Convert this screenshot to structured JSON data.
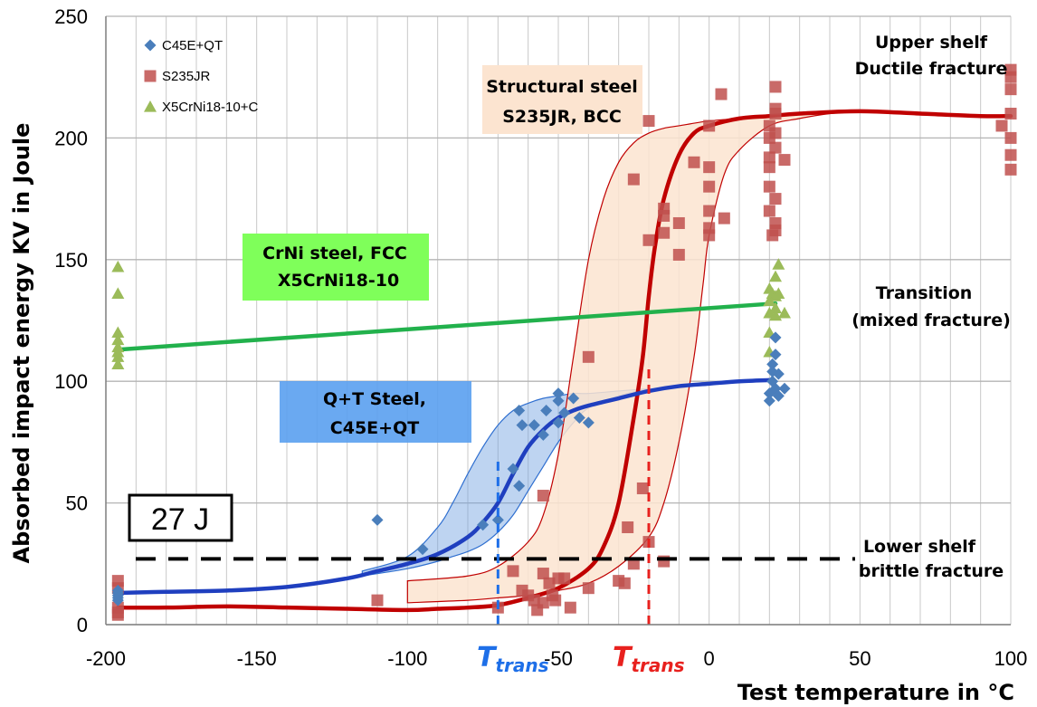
{
  "chart_data": {
    "type": "scatter",
    "xlabel": "Test temperature in °C",
    "ylabel": "Absorbed impact energy KV in Joule",
    "xlim": [
      -200,
      100
    ],
    "ylim": [
      0,
      250
    ],
    "xticks": [
      -200,
      -150,
      -100,
      -50,
      0,
      50,
      100
    ],
    "yticks": [
      0,
      50,
      100,
      150,
      200,
      250
    ],
    "grid": "vertical minor every 10 °C, horizontal every 50 J",
    "legend_position": "top-left",
    "series": [
      {
        "name": "C45E+QT",
        "marker": "diamond",
        "color": "#4a7ebb",
        "points": [
          [
            -196,
            14
          ],
          [
            -196,
            13
          ],
          [
            -196,
            12
          ],
          [
            -196,
            11
          ],
          [
            -196,
            10
          ],
          [
            -110,
            43
          ],
          [
            -95,
            31
          ],
          [
            -75,
            41
          ],
          [
            -70,
            43
          ],
          [
            -65,
            64
          ],
          [
            -63,
            57
          ],
          [
            -63,
            88
          ],
          [
            -62,
            82
          ],
          [
            -58,
            82
          ],
          [
            -55,
            78
          ],
          [
            -54,
            88
          ],
          [
            -50,
            92
          ],
          [
            -50,
            83
          ],
          [
            -50,
            95
          ],
          [
            -48,
            87
          ],
          [
            -45,
            93
          ],
          [
            -43,
            85
          ],
          [
            -40,
            83
          ],
          [
            20,
            92
          ],
          [
            20,
            95
          ],
          [
            21,
            100
          ],
          [
            21,
            104
          ],
          [
            21,
            107
          ],
          [
            22,
            111
          ],
          [
            22,
            118
          ],
          [
            22,
            97
          ],
          [
            23,
            94
          ],
          [
            23,
            103
          ],
          [
            25,
            97
          ]
        ]
      },
      {
        "name": "S235JR",
        "marker": "square",
        "color": "#c0504d",
        "points": [
          [
            -196,
            18
          ],
          [
            -196,
            15
          ],
          [
            -196,
            7
          ],
          [
            -196,
            5
          ],
          [
            -196,
            4
          ],
          [
            -110,
            10
          ],
          [
            -70,
            7
          ],
          [
            -65,
            22
          ],
          [
            -62,
            14
          ],
          [
            -60,
            12
          ],
          [
            -58,
            10
          ],
          [
            -57,
            6
          ],
          [
            -55,
            9
          ],
          [
            -55,
            53
          ],
          [
            -55,
            21
          ],
          [
            -53,
            17
          ],
          [
            -52,
            12
          ],
          [
            -51,
            10
          ],
          [
            -50,
            19
          ],
          [
            -48,
            19
          ],
          [
            -46,
            7
          ],
          [
            -40,
            15
          ],
          [
            -40,
            110
          ],
          [
            -30,
            18
          ],
          [
            -28,
            17
          ],
          [
            -27,
            40
          ],
          [
            -25,
            25
          ],
          [
            -25,
            183
          ],
          [
            -22,
            56
          ],
          [
            -20,
            207
          ],
          [
            -20,
            158
          ],
          [
            -20,
            34
          ],
          [
            -15,
            161
          ],
          [
            -15,
            168
          ],
          [
            -15,
            171
          ],
          [
            -15,
            26
          ],
          [
            -10,
            165
          ],
          [
            -10,
            152
          ],
          [
            -5,
            190
          ],
          [
            0,
            205
          ],
          [
            0,
            188
          ],
          [
            0,
            180
          ],
          [
            0,
            170
          ],
          [
            0,
            163
          ],
          [
            0,
            160
          ],
          [
            4,
            218
          ],
          [
            5,
            167
          ],
          [
            20,
            205
          ],
          [
            20,
            200
          ],
          [
            20,
            192
          ],
          [
            20,
            188
          ],
          [
            20,
            180
          ],
          [
            20,
            170
          ],
          [
            21,
            160
          ],
          [
            22,
            221
          ],
          [
            22,
            212
          ],
          [
            22,
            210
          ],
          [
            22,
            202
          ],
          [
            22,
            196
          ],
          [
            22,
            175
          ],
          [
            22,
            165
          ],
          [
            22,
            162
          ],
          [
            25,
            191
          ],
          [
            97,
            205
          ],
          [
            100,
            228
          ],
          [
            100,
            225
          ],
          [
            100,
            220
          ],
          [
            100,
            210
          ],
          [
            100,
            200
          ],
          [
            100,
            193
          ],
          [
            100,
            187
          ]
        ]
      },
      {
        "name": "X5CrNi18-10+C",
        "marker": "triangle",
        "color": "#9bbb59",
        "points": [
          [
            -196,
            147
          ],
          [
            -196,
            136
          ],
          [
            -196,
            120
          ],
          [
            -196,
            117
          ],
          [
            -196,
            114
          ],
          [
            -196,
            112
          ],
          [
            -196,
            110
          ],
          [
            -196,
            107
          ],
          [
            20,
            112
          ],
          [
            20,
            120
          ],
          [
            20,
            128
          ],
          [
            20,
            133
          ],
          [
            20,
            138
          ],
          [
            21,
            136
          ],
          [
            22,
            130
          ],
          [
            22,
            127
          ],
          [
            22,
            135
          ],
          [
            22,
            143
          ],
          [
            23,
            148
          ],
          [
            23,
            136
          ],
          [
            25,
            128
          ]
        ]
      }
    ],
    "fits": [
      {
        "series": "S235JR",
        "color": "#c00000",
        "x": [
          -196,
          -180,
          -160,
          -140,
          -120,
          -100,
          -90,
          -80,
          -70,
          -60,
          -50,
          -40,
          -35,
          -30,
          -25,
          -22,
          -20,
          -18,
          -15,
          -10,
          -5,
          0,
          10,
          20,
          30,
          50,
          70,
          90,
          100
        ],
        "y": [
          7,
          7,
          7.5,
          7,
          6.5,
          6,
          6.5,
          7,
          8,
          11,
          15,
          23,
          32,
          50,
          85,
          110,
          135,
          155,
          175,
          193,
          202,
          205,
          208,
          209,
          210,
          211,
          210,
          209,
          209
        ]
      },
      {
        "series": "C45E+QT",
        "color": "#1f3fbf",
        "x": [
          -196,
          -180,
          -160,
          -140,
          -120,
          -110,
          -100,
          -90,
          -80,
          -75,
          -70,
          -65,
          -60,
          -55,
          -50,
          -45,
          -40,
          -30,
          -20,
          -10,
          0,
          10,
          20
        ],
        "y": [
          13,
          13.5,
          14,
          15.5,
          19,
          22,
          25,
          29,
          36,
          42,
          50,
          62,
          73,
          80,
          85,
          88,
          90,
          93,
          96,
          98,
          99,
          100,
          100.5
        ]
      },
      {
        "series": "X5CrNi18-10+C",
        "color": "#22b14c",
        "x": [
          -196,
          22
        ],
        "y": [
          113,
          132
        ]
      }
    ],
    "scatter_bands": [
      {
        "series": "C45E+QT",
        "fill": "#6fa0e0",
        "upper_x": [
          -115,
          -100,
          -90,
          -85,
          -80,
          -75,
          -70,
          -65,
          -60,
          -55,
          -50,
          -45,
          -40,
          -30,
          -20
        ],
        "upper_y": [
          22,
          28,
          40,
          50,
          62,
          73,
          82,
          88,
          91,
          93,
          94,
          95,
          95,
          96,
          97
        ],
        "lower_x": [
          -115,
          -100,
          -90,
          -85,
          -80,
          -75,
          -70,
          -65,
          -60,
          -55,
          -50,
          -45,
          -40,
          -30,
          -20
        ],
        "lower_y": [
          20,
          23,
          26,
          28,
          30,
          33,
          38,
          45,
          55,
          65,
          75,
          83,
          89,
          94,
          97
        ]
      },
      {
        "series": "S235JR",
        "fill": "#fce4d0",
        "upper_x": [
          -100,
          -80,
          -70,
          -60,
          -55,
          -50,
          -45,
          -40,
          -35,
          -30,
          -25,
          -20,
          -15,
          -10,
          0,
          10,
          20,
          30,
          40,
          50
        ],
        "upper_y": [
          18,
          20,
          24,
          34,
          45,
          70,
          110,
          150,
          175,
          190,
          198,
          202,
          204,
          205,
          207,
          208,
          209,
          210,
          211,
          211
        ],
        "lower_x": [
          -100,
          -80,
          -70,
          -60,
          -50,
          -40,
          -30,
          -20,
          -15,
          -10,
          -5,
          -2,
          0,
          5,
          10,
          20,
          30,
          40,
          50
        ],
        "lower_y": [
          9,
          10,
          11,
          12,
          14,
          17,
          24,
          36,
          50,
          75,
          110,
          140,
          160,
          185,
          195,
          205,
          208,
          210,
          211
        ]
      }
    ],
    "reference_lines": [
      {
        "type": "horizontal",
        "y": 27,
        "style": "dashed",
        "color": "#000000"
      },
      {
        "type": "vertical",
        "x": -70,
        "y_from": 0,
        "y_to": 67,
        "style": "dashed",
        "color": "#1e6fe8"
      },
      {
        "type": "vertical",
        "x": -20,
        "y_from": 0,
        "y_to": 107,
        "style": "dashed",
        "color": "#e8211e"
      }
    ],
    "labels": {
      "energy_27": "27 J",
      "structural_1": "Structural steel",
      "structural_2": "S235JR, BCC",
      "crni_1": "CrNi steel, FCC",
      "crni_2": "X5CrNi18-10",
      "qt_1": "Q+T Steel,",
      "qt_2": "C45E+QT",
      "upper_1": "Upper shelf",
      "upper_2": "Ductile fracture",
      "transition_1": "Transition",
      "transition_2": "(mixed fracture)",
      "lower_1": "Lower shelf",
      "lower_2": "brittle fracture",
      "ttrans_main": "T",
      "ttrans_sub": "trans"
    },
    "colors": {
      "structural_box": "#fce4d0",
      "crni_box": "#7fff5a",
      "qt_box": "#5aa0f0",
      "ttrans_blue": "#1e6fe8",
      "ttrans_red": "#e8211e"
    }
  }
}
